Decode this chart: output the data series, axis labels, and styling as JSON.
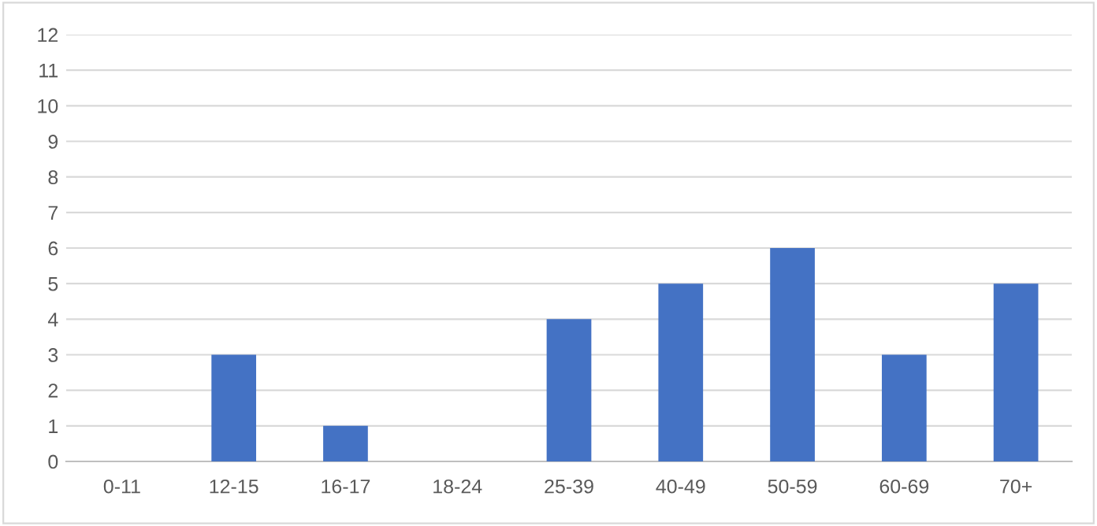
{
  "chart_data": {
    "type": "bar",
    "categories": [
      "0-11",
      "12-15",
      "16-17",
      "18-24",
      "25-39",
      "40-49",
      "50-59",
      "60-69",
      "70+"
    ],
    "values": [
      0,
      3,
      1,
      0,
      4,
      5,
      6,
      3,
      5
    ],
    "color": "#4472c4",
    "ylim": [
      0,
      12
    ],
    "yticks": [
      0,
      1,
      2,
      3,
      4,
      5,
      6,
      7,
      8,
      9,
      10,
      11,
      12
    ],
    "grid": "y"
  }
}
